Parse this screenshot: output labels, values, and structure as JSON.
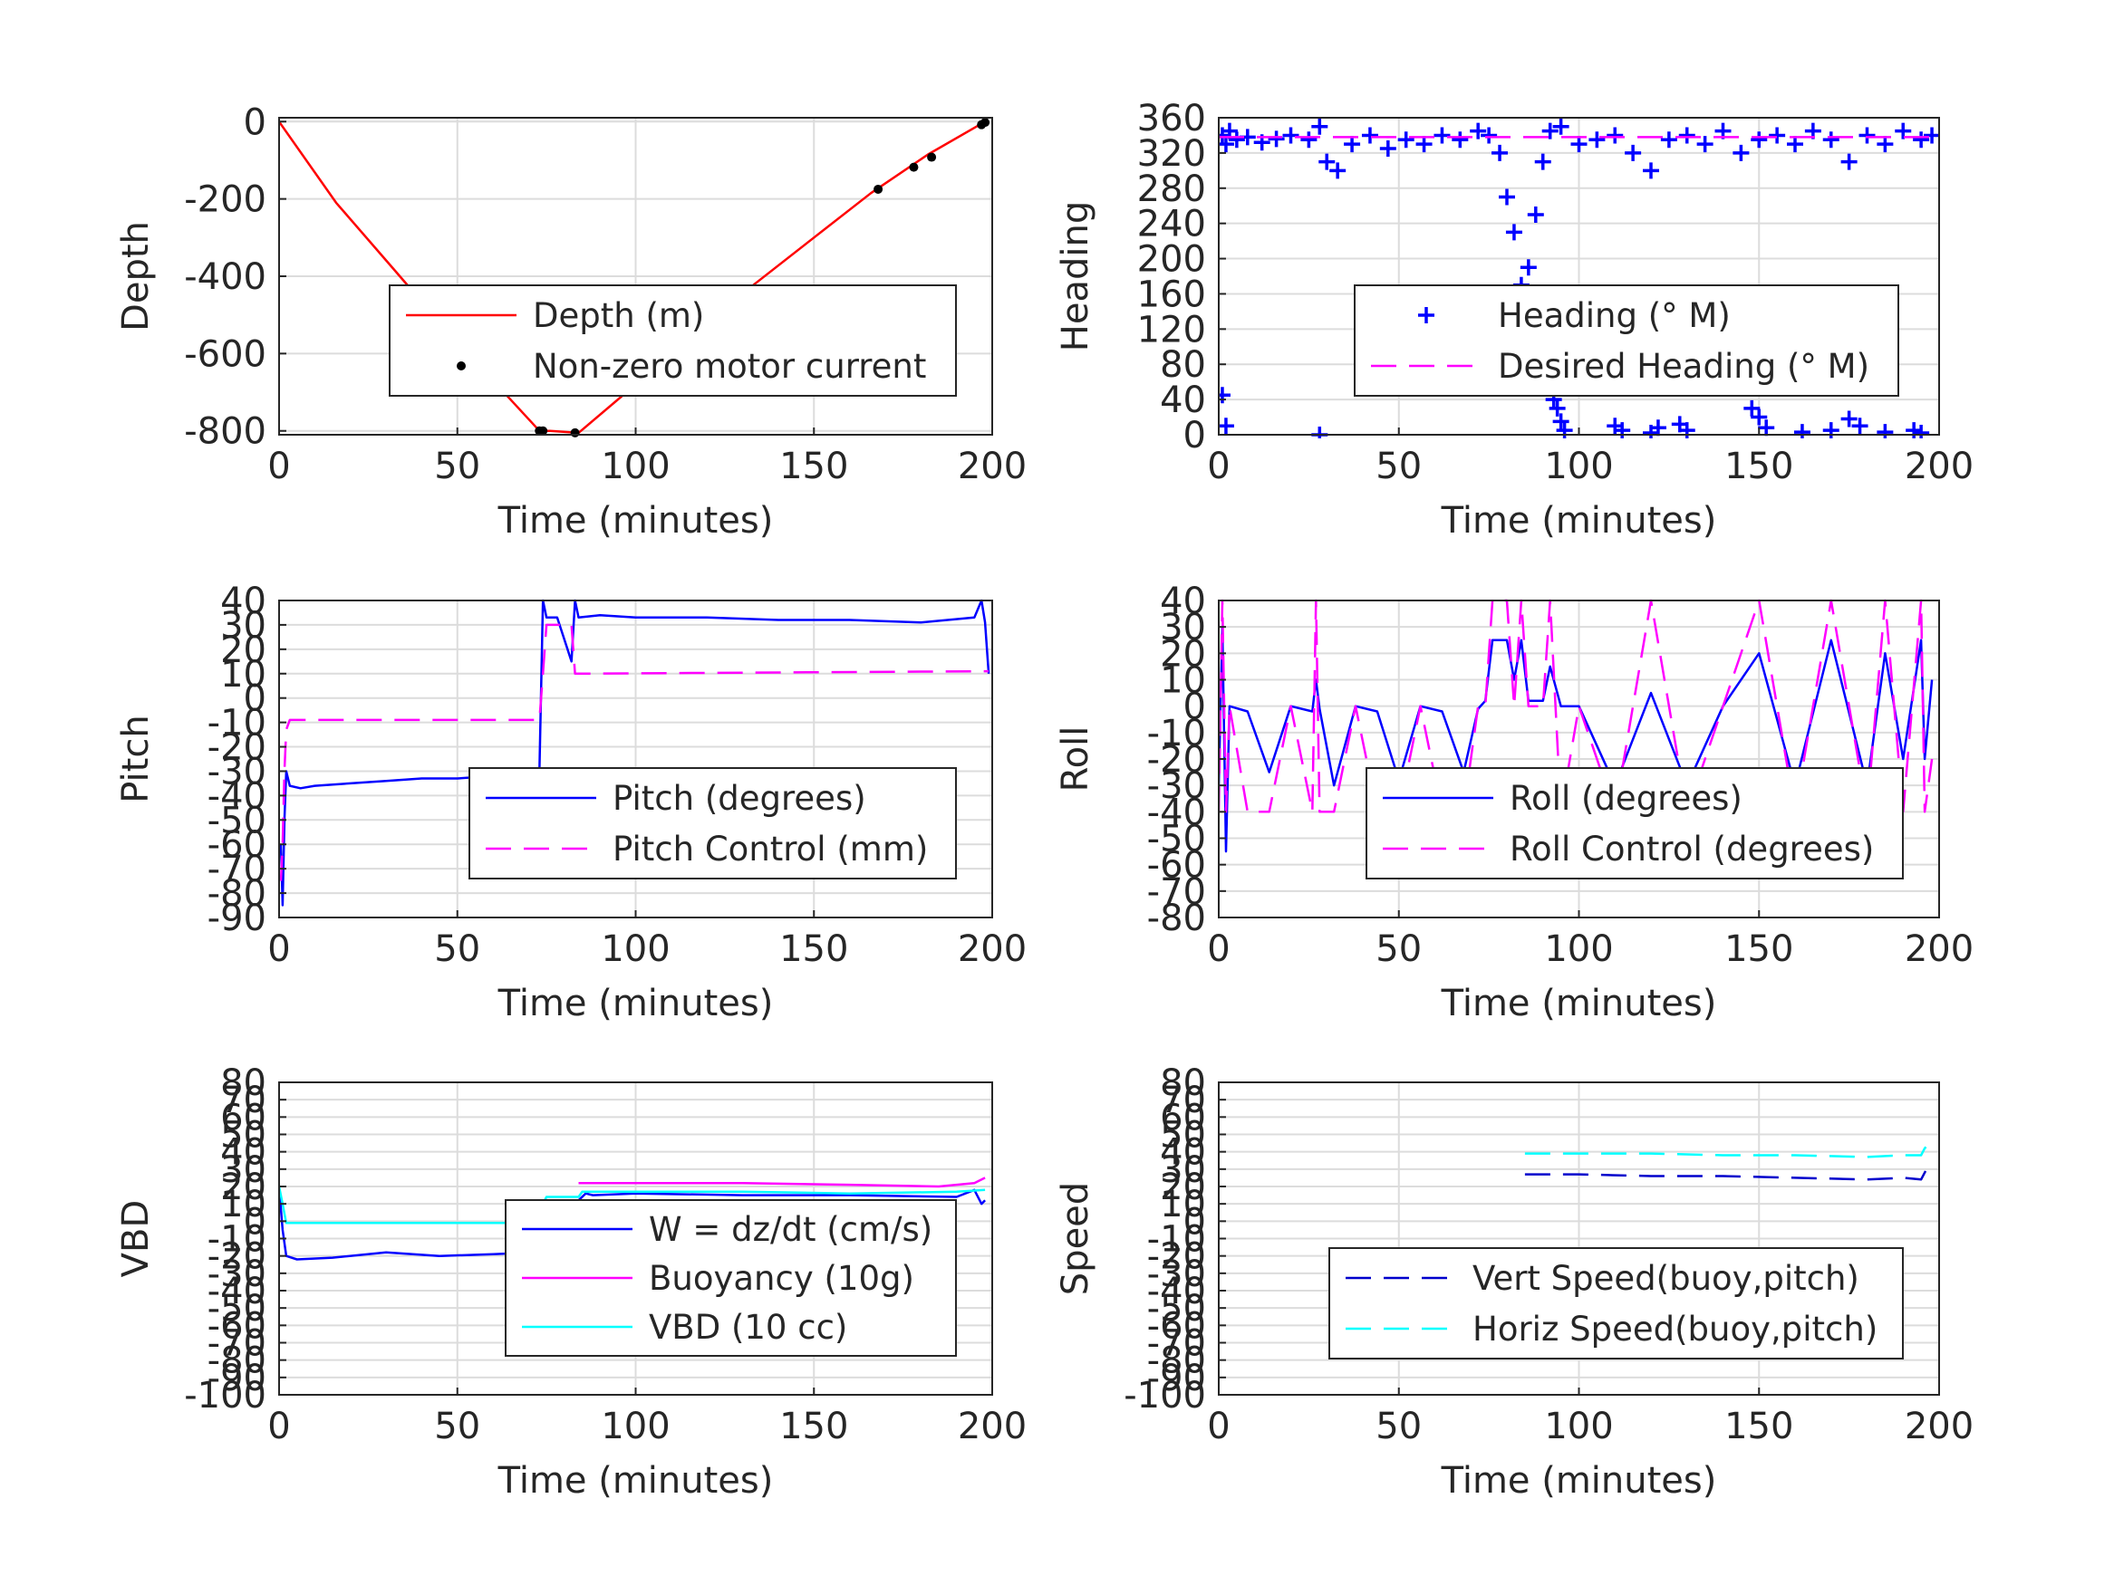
{
  "chart_data": [
    {
      "type": "line",
      "xlabel": "Time (minutes)",
      "ylabel": "Depth",
      "xlim": [
        0,
        200
      ],
      "ylim": [
        -810,
        10
      ],
      "xticks": [
        0,
        50,
        100,
        150,
        200
      ],
      "yticks": [
        -800,
        -600,
        -400,
        -200,
        0
      ],
      "grid": true,
      "legend_position": "center-right",
      "series": [
        {
          "name": "Depth (m)",
          "color": "#ff0000",
          "style": "solid",
          "x": [
            0,
            16,
            32,
            46,
            60,
            73,
            76,
            84,
            100,
            116,
            132,
            150,
            166,
            182,
            198
          ],
          "y": [
            0,
            -210,
            -380,
            -530,
            -670,
            -800,
            -800,
            -805,
            -680,
            -555,
            -430,
            -300,
            -185,
            -85,
            0
          ]
        },
        {
          "name": "Non-zero motor current",
          "color": "#000000",
          "style": "dots",
          "x": [
            73,
            74,
            83,
            168,
            178,
            183,
            197,
            198
          ],
          "y": [
            -800,
            -800,
            -805,
            -175,
            -118,
            -92,
            -8,
            -2
          ]
        }
      ]
    },
    {
      "type": "scatter",
      "xlabel": "Time (minutes)",
      "ylabel": "Heading",
      "xlim": [
        0,
        200
      ],
      "ylim": [
        0,
        360
      ],
      "xticks": [
        0,
        50,
        100,
        150,
        200
      ],
      "yticks": [
        0,
        40,
        80,
        120,
        160,
        200,
        240,
        280,
        320,
        360
      ],
      "grid": true,
      "legend_position": "center-right",
      "series": [
        {
          "name": "Heading (° M)",
          "color": "#0000ff",
          "style": "plus",
          "x": [
            1,
            2,
            3,
            5,
            8,
            12,
            16,
            20,
            25,
            28,
            30,
            33,
            37,
            42,
            47,
            52,
            57,
            62,
            67,
            72,
            75,
            78,
            80,
            82,
            84,
            86,
            88,
            90,
            92,
            95,
            100,
            105,
            110,
            115,
            120,
            125,
            130,
            135,
            140,
            145,
            150,
            155,
            160,
            165,
            170,
            175,
            180,
            185,
            190,
            195,
            198
          ],
          "y": [
            340,
            330,
            345,
            335,
            338,
            332,
            336,
            340,
            335,
            350,
            310,
            300,
            330,
            340,
            325,
            335,
            330,
            340,
            335,
            345,
            340,
            320,
            270,
            230,
            170,
            190,
            250,
            310,
            345,
            350,
            330,
            335,
            340,
            320,
            300,
            335,
            340,
            330,
            345,
            320,
            335,
            340,
            330,
            345,
            335,
            310,
            340,
            330,
            345,
            335,
            340
          ]
        },
        {
          "name": "",
          "color": "#0000ff",
          "style": "plus",
          "x": [
            1,
            2,
            28,
            93,
            94,
            95,
            96,
            110,
            112,
            120,
            122,
            128,
            130,
            148,
            150,
            152,
            162,
            170,
            175,
            178,
            185,
            193,
            195
          ],
          "y": [
            45,
            10,
            0,
            40,
            30,
            15,
            5,
            10,
            5,
            2,
            8,
            12,
            5,
            30,
            20,
            8,
            3,
            5,
            18,
            10,
            3,
            5,
            2
          ]
        },
        {
          "name": "Desired Heading (° M)",
          "color": "#ff00ff",
          "style": "dashed",
          "x": [
            0,
            200
          ],
          "y": [
            338,
            338
          ]
        }
      ]
    },
    {
      "type": "line",
      "xlabel": "Time (minutes)",
      "ylabel": "Pitch",
      "xlim": [
        0,
        200
      ],
      "ylim": [
        -90,
        40
      ],
      "xticks": [
        0,
        50,
        100,
        150,
        200
      ],
      "yticks": [
        -90,
        -80,
        -70,
        -60,
        -50,
        -40,
        -30,
        -20,
        -10,
        0,
        10,
        20,
        30,
        40
      ],
      "grid": true,
      "legend_position": "center-right",
      "series": [
        {
          "name": "Pitch (degrees)",
          "color": "#0000ff",
          "style": "solid",
          "x": [
            0.5,
            1,
            1.5,
            2,
            3,
            6,
            10,
            20,
            30,
            40,
            50,
            60,
            70,
            73,
            74,
            75,
            78,
            82,
            83,
            84,
            90,
            100,
            120,
            140,
            160,
            180,
            195,
            197,
            198,
            199
          ],
          "y": [
            -60,
            -85,
            -50,
            -30,
            -36,
            -37,
            -36,
            -35,
            -34,
            -33,
            -33,
            -32,
            -32,
            -30,
            40,
            33,
            33,
            15,
            40,
            33,
            34,
            33,
            33,
            32,
            32,
            31,
            33,
            40,
            31,
            10
          ]
        },
        {
          "name": "Pitch Control (mm)",
          "color": "#ff00ff",
          "style": "dashed",
          "x": [
            0.5,
            1,
            1.5,
            2,
            3,
            73,
            74,
            75,
            82,
            83,
            199
          ],
          "y": [
            -75,
            -60,
            -30,
            -13,
            -9,
            -9,
            10,
            30,
            30,
            10,
            11
          ]
        }
      ]
    },
    {
      "type": "line",
      "xlabel": "Time (minutes)",
      "ylabel": "Roll",
      "xlim": [
        0,
        200
      ],
      "ylim": [
        -80,
        40
      ],
      "xticks": [
        0,
        50,
        100,
        150,
        200
      ],
      "yticks": [
        -80,
        -70,
        -60,
        -50,
        -40,
        -30,
        -20,
        -10,
        0,
        10,
        20,
        30,
        40
      ],
      "grid": true,
      "legend_position": "center-right",
      "series": [
        {
          "name": "Roll (degrees)",
          "color": "#0000ff",
          "style": "solid",
          "x": [
            0,
            1,
            2,
            3,
            8,
            14,
            20,
            26,
            27,
            28,
            32,
            38,
            44,
            50,
            56,
            62,
            68,
            72,
            74,
            76,
            80,
            82,
            84,
            86,
            90,
            92,
            95,
            100,
            110,
            120,
            130,
            140,
            150,
            160,
            170,
            180,
            185,
            190,
            195,
            196,
            198
          ],
          "y": [
            -30,
            30,
            -55,
            0,
            -2,
            -25,
            0,
            -2,
            10,
            -1,
            -30,
            0,
            -2,
            -28,
            0,
            -2,
            -25,
            -1,
            2,
            25,
            25,
            10,
            25,
            2,
            2,
            15,
            0,
            0,
            -30,
            5,
            -30,
            0,
            20,
            -30,
            25,
            -30,
            20,
            -20,
            25,
            -20,
            10
          ]
        },
        {
          "name": "Roll Control (degrees)",
          "color": "#ff00ff",
          "style": "dashed",
          "x": [
            0,
            1,
            2,
            3,
            8,
            14,
            20,
            26,
            27,
            28,
            32,
            38,
            44,
            50,
            56,
            62,
            68,
            72,
            74,
            76,
            80,
            82,
            84,
            86,
            90,
            92,
            95,
            100,
            110,
            120,
            130,
            140,
            150,
            160,
            170,
            180,
            185,
            190,
            195,
            196,
            198
          ],
          "y": [
            -40,
            40,
            -40,
            0,
            -40,
            -40,
            0,
            -40,
            40,
            -40,
            -40,
            0,
            -40,
            -40,
            0,
            -40,
            -40,
            0,
            0,
            40,
            40,
            0,
            40,
            0,
            0,
            40,
            -40,
            0,
            -40,
            40,
            -40,
            0,
            40,
            -40,
            40,
            -40,
            40,
            -40,
            40,
            -40,
            -20
          ]
        }
      ]
    },
    {
      "type": "line",
      "xlabel": "Time (minutes)",
      "ylabel": "VBD",
      "xlim": [
        0,
        200
      ],
      "ylim": [
        -100,
        80
      ],
      "xticks": [
        0,
        50,
        100,
        150,
        200
      ],
      "yticks": [
        -100,
        -90,
        -80,
        -70,
        -60,
        -50,
        -40,
        -30,
        -20,
        -10,
        0,
        10,
        20,
        30,
        40,
        50,
        60,
        70,
        80
      ],
      "ytick_labels": [
        "-100",
        "-90",
        "-80",
        "-70",
        "-60",
        "-50",
        "-40",
        "-30",
        "-20",
        "-10",
        "0",
        "10",
        "20",
        "30",
        "40",
        "50",
        "60",
        "70",
        "80"
      ],
      "grid": true,
      "legend_position": "center-right",
      "series": [
        {
          "name": "W = dz/dt (cm/s)",
          "color": "#0000ff",
          "style": "solid",
          "x": [
            0,
            1,
            2,
            5,
            15,
            30,
            45,
            60,
            72,
            74,
            75,
            78,
            80,
            82,
            84,
            86,
            88,
            100,
            130,
            160,
            190,
            195,
            197,
            198
          ],
          "y": [
            20,
            -5,
            -20,
            -22,
            -21,
            -18,
            -20,
            -19,
            -18,
            -5,
            10,
            6,
            8,
            4,
            12,
            16,
            15,
            16,
            15,
            15,
            14,
            18,
            10,
            12
          ]
        },
        {
          "name": "Buoyancy (10g)",
          "color": "#ff00ff",
          "style": "solid",
          "x": [
            84,
            100,
            130,
            160,
            185,
            195,
            198
          ],
          "y": [
            22,
            22,
            22,
            21,
            20,
            22,
            25
          ]
        },
        {
          "name": "VBD (10 cc)",
          "color": "#00ffff",
          "style": "solid",
          "x": [
            0,
            1,
            2,
            72,
            73,
            74,
            75,
            78,
            84,
            85,
            100,
            130,
            160,
            190,
            198
          ],
          "y": [
            20,
            10,
            -1,
            -1,
            -1,
            10,
            14,
            14,
            14,
            17,
            17,
            17,
            16,
            17,
            18
          ]
        }
      ]
    },
    {
      "type": "line",
      "xlabel": "Time (minutes)",
      "ylabel": "Speed",
      "xlim": [
        0,
        200
      ],
      "ylim": [
        -100,
        80
      ],
      "xticks": [
        0,
        50,
        100,
        150,
        200
      ],
      "yticks": [
        -100,
        -90,
        -80,
        -70,
        -60,
        -50,
        -40,
        -30,
        -20,
        -10,
        0,
        10,
        20,
        30,
        40,
        50,
        60,
        70,
        80
      ],
      "ytick_labels": [
        "-100",
        "-90",
        "-80",
        "-70",
        "-60",
        "-50",
        "-40",
        "-30",
        "-20",
        "-10",
        "0",
        "10",
        "20",
        "30",
        "40",
        "50",
        "60",
        "70",
        "80"
      ],
      "grid": true,
      "legend_position": "lower-right",
      "series": [
        {
          "name": "Vert Speed(buoy,pitch)",
          "color": "#0000cc",
          "style": "dashed",
          "x": [
            85,
            100,
            120,
            140,
            160,
            180,
            190,
            195,
            196,
            197
          ],
          "y": [
            27,
            27,
            26,
            26,
            25,
            24,
            25,
            24,
            28,
            32
          ]
        },
        {
          "name": "Horiz Speed(buoy,pitch)",
          "color": "#00ffff",
          "style": "dashed",
          "x": [
            85,
            100,
            120,
            140,
            160,
            180,
            190,
            195,
            196,
            197
          ],
          "y": [
            39,
            39,
            39,
            38,
            38,
            37,
            38,
            38,
            42,
            44
          ]
        }
      ]
    }
  ]
}
